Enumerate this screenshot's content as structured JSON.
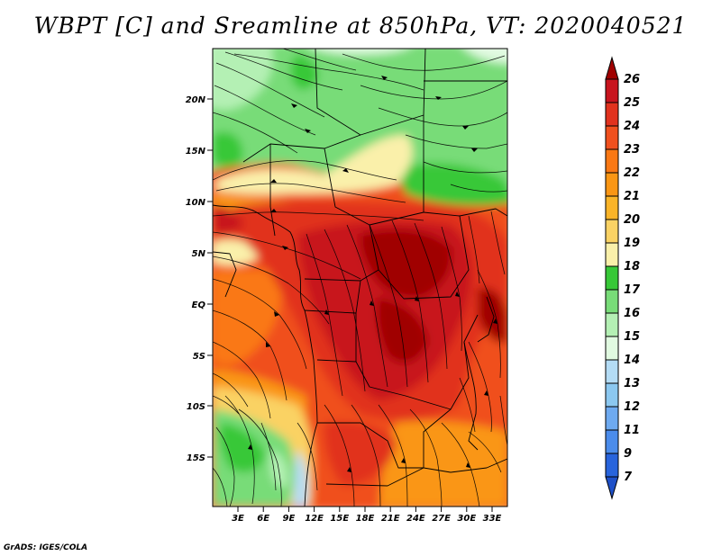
{
  "title": "WBPT [C] and Sreamline at 850hPa, VT: 2020040521",
  "credit": "GrADS: IGES/COLA",
  "map": {
    "variable": "WBPT [C]",
    "level": "850hPa",
    "valid_time": "2020040521",
    "lon_range": [
      0,
      36
    ],
    "lat_range": [
      -20,
      25
    ],
    "lon_ticks": [
      "3E",
      "6E",
      "9E",
      "12E",
      "15E",
      "18E",
      "21E",
      "24E",
      "27E",
      "30E",
      "33E"
    ],
    "lat_ticks": [
      "20N",
      "15N",
      "10N",
      "5N",
      "EQ",
      "5S",
      "10S",
      "15S"
    ]
  },
  "colorbar": {
    "labels": [
      "26",
      "25",
      "24",
      "23",
      "22",
      "21",
      "20",
      "19",
      "18",
      "17",
      "16",
      "15",
      "14",
      "13",
      "12",
      "11",
      "9",
      "7"
    ],
    "colors": [
      "#a00000",
      "#c8141e",
      "#e1321e",
      "#f0501e",
      "#fa7814",
      "#fa9614",
      "#fab428",
      "#fad264",
      "#faf0aa",
      "#37c837",
      "#78dc78",
      "#b4f0b4",
      "#e1fae1",
      "#b4dcf5",
      "#8cc8f0",
      "#6eaaf0",
      "#4b8ceb",
      "#2864dc",
      "#1e50c8"
    ]
  }
}
